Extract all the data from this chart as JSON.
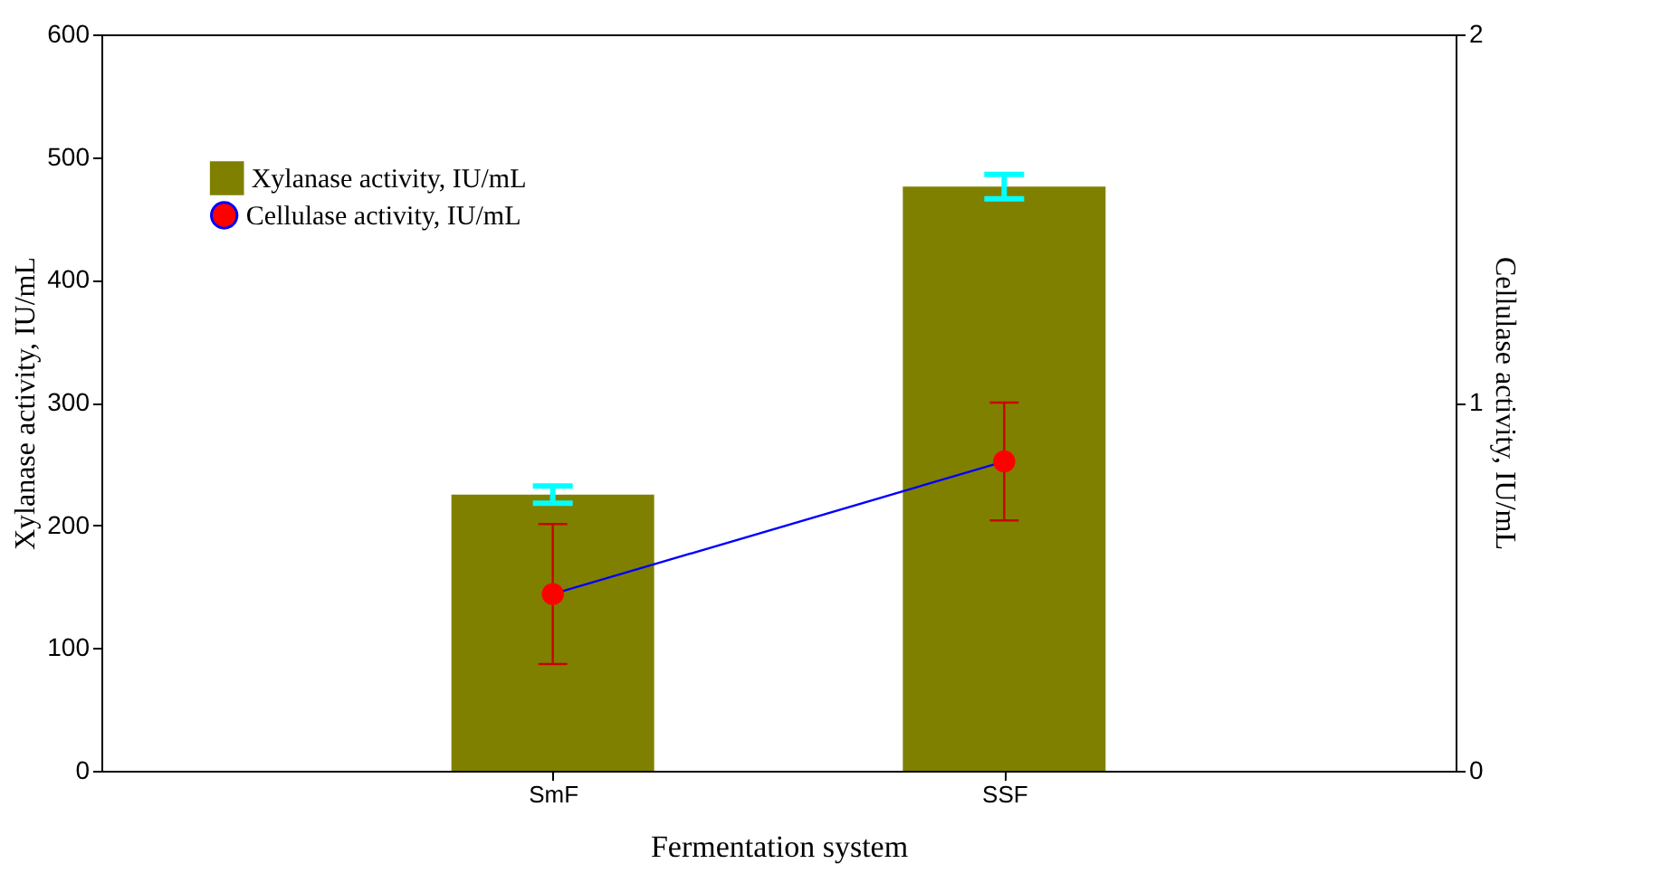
{
  "chart_data": {
    "type": "bar",
    "xlabel": "Fermentation system",
    "ylabel": "Xylanase activity, IU/mL",
    "y2label": "Cellulase activity, IU/mL",
    "categories": [
      "SmF",
      "SSF"
    ],
    "series": [
      {
        "name": "Xylanase activity, IU/mL",
        "color": "#808000",
        "values": [
          225,
          476
        ],
        "errors": [
          7,
          10
        ]
      },
      {
        "name": "Cellulase activity, IU/mL",
        "type": "line",
        "axis": "y2",
        "color": "#0000ff",
        "values": [
          0.48,
          0.84
        ],
        "errors": [
          0.19,
          0.16
        ],
        "marker": "circle"
      }
    ],
    "ylim": [
      0,
      600
    ],
    "yticks": [
      0,
      100,
      200,
      300,
      400,
      500,
      600
    ],
    "y2lim": [
      0,
      2
    ],
    "y2ticks": [
      0,
      1,
      2
    ],
    "grid": false,
    "legend": "top left"
  }
}
